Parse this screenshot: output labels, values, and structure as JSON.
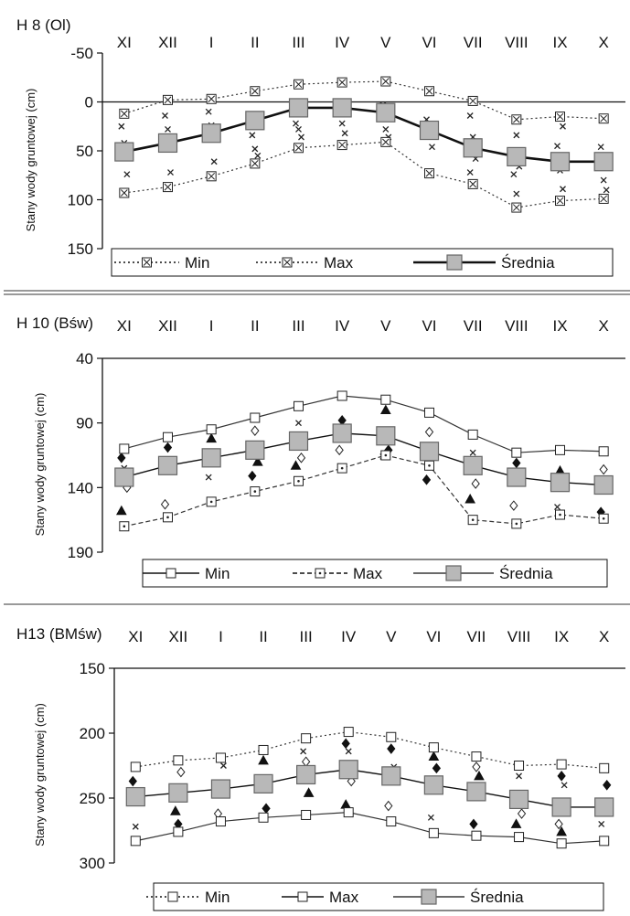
{
  "chart_data": [
    {
      "type": "line",
      "title": "H 8 (Ol)",
      "ylabel": "Stany wody gruntowej (cm)",
      "ylim": [
        -50,
        150
      ],
      "y_inverted": true,
      "yticks": [
        -50,
        0,
        50,
        100,
        150
      ],
      "ytick_labels": [
        "-50",
        "0",
        "50",
        "100",
        "150"
      ],
      "categories": [
        "XI",
        "XII",
        "I",
        "II",
        "III",
        "IV",
        "V",
        "VI",
        "VII",
        "VIII",
        "IX",
        "X"
      ],
      "legend_placement": "bottom",
      "grid": false,
      "series": [
        {
          "name": "Min",
          "style": "dotted",
          "marker": "square-x",
          "values": [
            12,
            -2,
            -3,
            -11,
            -18,
            -20,
            -21,
            -11,
            -1,
            18,
            15,
            17
          ]
        },
        {
          "name": "Max",
          "style": "dotted",
          "marker": "square-x",
          "values": [
            93,
            87,
            76,
            63,
            47,
            44,
            41,
            73,
            84,
            108,
            101,
            99
          ]
        },
        {
          "name": "Średnia",
          "style": "thick",
          "marker": "square",
          "values": [
            51,
            42,
            32,
            19,
            6,
            6,
            11,
            29,
            47,
            56,
            61,
            61
          ]
        }
      ],
      "scatter": {
        "marker": "x",
        "points": [
          [
            0,
            25
          ],
          [
            0,
            42
          ],
          [
            0,
            74
          ],
          [
            1,
            14
          ],
          [
            1,
            28
          ],
          [
            1,
            72
          ],
          [
            2,
            10
          ],
          [
            2,
            24
          ],
          [
            2,
            61
          ],
          [
            3,
            34
          ],
          [
            3,
            48
          ],
          [
            3,
            55
          ],
          [
            4,
            22
          ],
          [
            4,
            28
          ],
          [
            4,
            36
          ],
          [
            5,
            8
          ],
          [
            5,
            22
          ],
          [
            5,
            32
          ],
          [
            6,
            3
          ],
          [
            6,
            28
          ],
          [
            6,
            36
          ],
          [
            7,
            18
          ],
          [
            7,
            34
          ],
          [
            7,
            46
          ],
          [
            8,
            14
          ],
          [
            8,
            36
          ],
          [
            8,
            58
          ],
          [
            8,
            72
          ],
          [
            9,
            34
          ],
          [
            9,
            66
          ],
          [
            9,
            74
          ],
          [
            9,
            94
          ],
          [
            10,
            25
          ],
          [
            10,
            45
          ],
          [
            10,
            70
          ],
          [
            10,
            89
          ],
          [
            11,
            46
          ],
          [
            11,
            80
          ],
          [
            11,
            90
          ]
        ]
      }
    },
    {
      "type": "line",
      "title": "H 10 (Bśw)",
      "ylabel": "Stany wody gruntowej (cm)",
      "ylim": [
        40,
        190
      ],
      "y_inverted": true,
      "yticks": [
        40,
        90,
        140,
        190
      ],
      "ytick_labels": [
        "40",
        "90",
        "140",
        "190"
      ],
      "categories": [
        "XI",
        "XII",
        "I",
        "II",
        "III",
        "IV",
        "V",
        "VI",
        "VII",
        "VIII",
        "IX",
        "X"
      ],
      "legend_placement": "bottom",
      "grid": false,
      "series": [
        {
          "name": "Min",
          "style": "solid",
          "marker": "square",
          "values": [
            110,
            101,
            95,
            86,
            77,
            69,
            72,
            82,
            99,
            113,
            111,
            112
          ]
        },
        {
          "name": "Max",
          "style": "dashed",
          "marker": "square-dot",
          "values": [
            170,
            163,
            151,
            143,
            135,
            125,
            115,
            123,
            165,
            168,
            161,
            164
          ]
        },
        {
          "name": "Średnia",
          "style": "solid",
          "marker": "square",
          "values": [
            132,
            123,
            117,
            111,
            104,
            98,
            100,
            112,
            123,
            132,
            136,
            138
          ]
        }
      ],
      "scatter": {
        "marker": "mixed",
        "points": [
          [
            0,
            117
          ],
          [
            0,
            125
          ],
          [
            0,
            140
          ],
          [
            0,
            158
          ],
          [
            1,
            109
          ],
          [
            1,
            121
          ],
          [
            1,
            153
          ],
          [
            2,
            102
          ],
          [
            2,
            120
          ],
          [
            2,
            132
          ],
          [
            3,
            96
          ],
          [
            3,
            120
          ],
          [
            3,
            131
          ],
          [
            4,
            90
          ],
          [
            4,
            117
          ],
          [
            4,
            123
          ],
          [
            5,
            88
          ],
          [
            5,
            98
          ],
          [
            5,
            111
          ],
          [
            6,
            80
          ],
          [
            6,
            111
          ],
          [
            6,
            116
          ],
          [
            7,
            97
          ],
          [
            7,
            111
          ],
          [
            7,
            134
          ],
          [
            8,
            113
          ],
          [
            8,
            137
          ],
          [
            8,
            149
          ],
          [
            9,
            121
          ],
          [
            9,
            132
          ],
          [
            9,
            154
          ],
          [
            10,
            127
          ],
          [
            10,
            132
          ],
          [
            10,
            155
          ],
          [
            11,
            126
          ],
          [
            11,
            141
          ],
          [
            11,
            159
          ]
        ]
      }
    },
    {
      "type": "line",
      "title": "H13 (BMśw)",
      "ylabel": "Stany wody gruntowej (cm)",
      "ylim": [
        150,
        300
      ],
      "y_inverted": true,
      "yticks": [
        150,
        200,
        250,
        300
      ],
      "ytick_labels": [
        "150",
        "200",
        "250",
        "300"
      ],
      "categories": [
        "XI",
        "XII",
        "I",
        "II",
        "III",
        "IV",
        "V",
        "VI",
        "VII",
        "VIII",
        "IX",
        "X"
      ],
      "legend_placement": "bottom",
      "grid": false,
      "series": [
        {
          "name": "Min",
          "style": "dotted",
          "marker": "square",
          "values": [
            226,
            221,
            219,
            213,
            204,
            199,
            203,
            211,
            218,
            225,
            224,
            227
          ]
        },
        {
          "name": "Max",
          "style": "solid",
          "marker": "square",
          "values": [
            283,
            276,
            268,
            265,
            263,
            261,
            268,
            277,
            279,
            280,
            285,
            283
          ]
        },
        {
          "name": "Średnia",
          "style": "solid",
          "marker": "square",
          "values": [
            249,
            246,
            243,
            239,
            232,
            228,
            233,
            240,
            245,
            251,
            257,
            257
          ]
        }
      ],
      "scatter": {
        "marker": "mixed",
        "points": [
          [
            0,
            237
          ],
          [
            0,
            272
          ],
          [
            1,
            230
          ],
          [
            1,
            260
          ],
          [
            1,
            270
          ],
          [
            2,
            225
          ],
          [
            2,
            262
          ],
          [
            3,
            221
          ],
          [
            3,
            258
          ],
          [
            4,
            214
          ],
          [
            4,
            222
          ],
          [
            4,
            246
          ],
          [
            5,
            208
          ],
          [
            5,
            214
          ],
          [
            5,
            237
          ],
          [
            5,
            255
          ],
          [
            6,
            212
          ],
          [
            6,
            226
          ],
          [
            6,
            256
          ],
          [
            7,
            218
          ],
          [
            7,
            227
          ],
          [
            7,
            265
          ],
          [
            8,
            226
          ],
          [
            8,
            233
          ],
          [
            8,
            270
          ],
          [
            9,
            233
          ],
          [
            9,
            262
          ],
          [
            9,
            270
          ],
          [
            10,
            233
          ],
          [
            10,
            240
          ],
          [
            10,
            270
          ],
          [
            10,
            276
          ],
          [
            11,
            240
          ],
          [
            11,
            270
          ]
        ]
      }
    }
  ]
}
